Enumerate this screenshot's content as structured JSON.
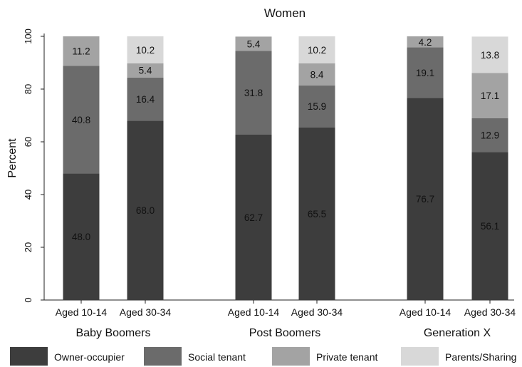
{
  "chart_data": {
    "type": "bar",
    "stacked": true,
    "title": "Women",
    "xlabel": "",
    "ylabel": "Percent",
    "ylim": [
      0,
      100
    ],
    "yticks": [
      0,
      20,
      40,
      60,
      80,
      100
    ],
    "grid": false,
    "legend_position": "bottom",
    "groups": [
      {
        "name": "Baby Boomers",
        "categories": [
          "Aged 10-14",
          "Aged 30-34"
        ]
      },
      {
        "name": "Post Boomers",
        "categories": [
          "Aged 10-14",
          "Aged 30-34"
        ]
      },
      {
        "name": "Generation X",
        "categories": [
          "Aged 10-14",
          "Aged 30-34"
        ]
      }
    ],
    "series": [
      {
        "name": "Owner-occupier",
        "color": "#3d3d3d",
        "values": [
          48.0,
          68.0,
          62.7,
          65.5,
          76.7,
          56.1
        ],
        "labels": [
          "48.0",
          "68.0",
          "62.7",
          "65.5",
          "76.7",
          "56.1"
        ]
      },
      {
        "name": "Social tenant",
        "color": "#6b6b6b",
        "values": [
          40.8,
          16.4,
          31.8,
          15.9,
          19.1,
          12.9
        ],
        "labels": [
          "40.8",
          "16.4",
          "31.8",
          "15.9",
          "19.1",
          "12.9"
        ]
      },
      {
        "name": "Private tenant",
        "color": "#a3a3a3",
        "values": [
          11.2,
          5.4,
          5.4,
          8.4,
          4.2,
          17.1
        ],
        "labels": [
          "11.2",
          "5.4",
          "5.4",
          "8.4",
          "4.2",
          "17.1"
        ]
      },
      {
        "name": "Parents/Sharing",
        "color": "#d8d8d8",
        "values": [
          0,
          10.2,
          0,
          10.2,
          0,
          13.8
        ],
        "labels": [
          "",
          "10.2",
          "",
          "10.2",
          "",
          "13.8"
        ]
      }
    ]
  }
}
